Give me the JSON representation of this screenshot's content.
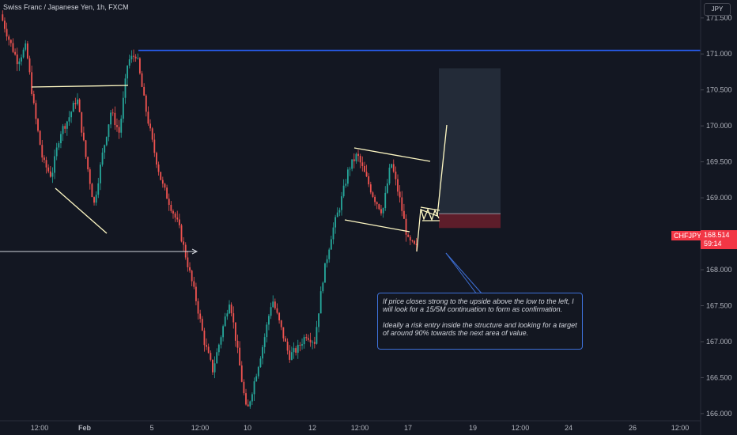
{
  "header": {
    "title": "Swiss Franc / Japanese Yen, 1h, FXCM"
  },
  "currency": "JPY",
  "last_price": {
    "ticker": "CHFJPY",
    "price": "168.514",
    "countdown": "59:14"
  },
  "annotation": {
    "line1": "If price closes strong to the upside above the low to the left, I will look for a 15/5M continuation to form as confirmation.",
    "line2": "Ideally a risk entry inside the structure and looking for a target of around 90% towards the next area of value."
  },
  "colors": {
    "background": "#131722",
    "bull": "#26a69a",
    "bear": "#ef5350",
    "resistance": "#2962ff",
    "drawing": "#fff9c4",
    "accent": "#f23645"
  },
  "chart_data": {
    "type": "candlestick",
    "title": "Swiss Franc / Japanese Yen, 1h, FXCM",
    "x_ticks": [
      "12:00",
      "Feb",
      "5",
      "12:00",
      "10",
      "12",
      "12:00",
      "17",
      "19",
      "12:00",
      "24",
      "26",
      "12:00"
    ],
    "y_ticks": [
      "171.500",
      "171.000",
      "170.500",
      "170.000",
      "169.500",
      "169.000",
      "168.500",
      "168.000",
      "167.500",
      "167.000",
      "166.500",
      "166.000"
    ],
    "ylim": [
      165.9,
      171.75
    ],
    "price_path": [
      171.55,
      171.2,
      170.9,
      171.1,
      170.2,
      169.5,
      169.3,
      169.9,
      170.1,
      170.4,
      169.6,
      168.9,
      169.6,
      170.2,
      169.9,
      170.9,
      171.0,
      170.3,
      169.7,
      169.2,
      168.9,
      168.6,
      168.1,
      167.6,
      167.0,
      166.6,
      167.1,
      167.6,
      166.8,
      166.0,
      166.5,
      167.0,
      167.6,
      167.2,
      166.8,
      166.9,
      167.1,
      167.0,
      167.9,
      168.5,
      168.9,
      169.4,
      169.6,
      169.3,
      169.0,
      168.8,
      169.5,
      169.0,
      168.4,
      168.3
    ],
    "resistance_level": 171.05,
    "long_position": {
      "target": 170.8,
      "entry": 168.78,
      "stop": 168.58
    },
    "grid": false,
    "legend": "none"
  }
}
